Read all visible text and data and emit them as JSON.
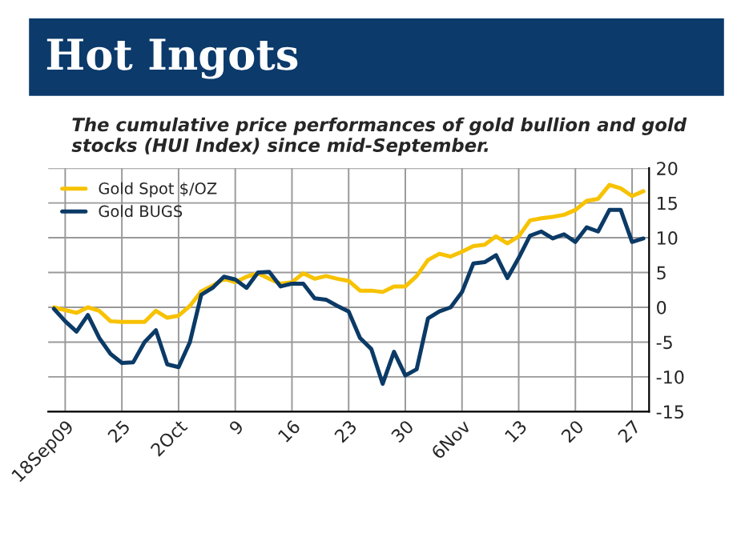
{
  "chart_data": {
    "type": "line",
    "title": "Hot Ingots",
    "subtitle": "The cumulative price performances of gold bullion and gold stocks (HUI Index) since mid-September.",
    "categories": [
      null,
      "18Sep09",
      null,
      null,
      null,
      null,
      "25",
      null,
      null,
      null,
      null,
      "2Oct",
      null,
      null,
      null,
      null,
      "9",
      null,
      null,
      null,
      null,
      "16",
      null,
      null,
      null,
      null,
      "23",
      null,
      null,
      null,
      null,
      "30",
      null,
      null,
      null,
      null,
      "6Nov",
      null,
      null,
      null,
      null,
      "13",
      null,
      null,
      null,
      null,
      "20",
      null,
      null,
      null,
      null,
      "27",
      null
    ],
    "series": [
      {
        "name": "Gold Spot $/OZ",
        "color": "#f7c200",
        "values": [
          0,
          -0.4,
          -0.8,
          0,
          -0.5,
          -2,
          -2.1,
          -2.1,
          -2.1,
          -0.5,
          -1.5,
          -1.2,
          0.2,
          2.3,
          3.1,
          4.1,
          3.6,
          4.4,
          4.9,
          4.1,
          3.4,
          3.6,
          4.9,
          4.1,
          4.5,
          4.1,
          3.8,
          2.4,
          2.4,
          2.2,
          3,
          3,
          4.5,
          6.8,
          7.7,
          7.3,
          8,
          8.8,
          9,
          10.2,
          9.2,
          10.2,
          12.5,
          12.8,
          13,
          13.3,
          14,
          15.3,
          15.6,
          17.6,
          17.1,
          16,
          16.7
        ]
      },
      {
        "name": "Gold BUGS",
        "color": "#0b3a66",
        "values": [
          -0.2,
          -2,
          -3.5,
          -1.1,
          -4.4,
          -6.7,
          -8,
          -7.9,
          -5,
          -3.3,
          -8.2,
          -8.6,
          -5,
          1.8,
          2.8,
          4.4,
          4,
          2.8,
          5,
          5.1,
          3,
          3.4,
          3.4,
          1.3,
          1.1,
          0.2,
          -0.6,
          -4.4,
          -6,
          -11,
          -6.4,
          -9.8,
          -8.9,
          -1.6,
          -0.6,
          0,
          2.2,
          6.3,
          6.5,
          7.5,
          4.2,
          7.1,
          10.3,
          10.9,
          9.9,
          10.5,
          9.4,
          11.5,
          10.9,
          14,
          14,
          9.4,
          9.9
        ]
      }
    ],
    "ylim": [
      -15,
      20
    ],
    "yticks": [
      -15,
      -10,
      -5,
      0,
      5,
      10,
      15,
      20
    ],
    "grid": true,
    "legend": "top left"
  }
}
